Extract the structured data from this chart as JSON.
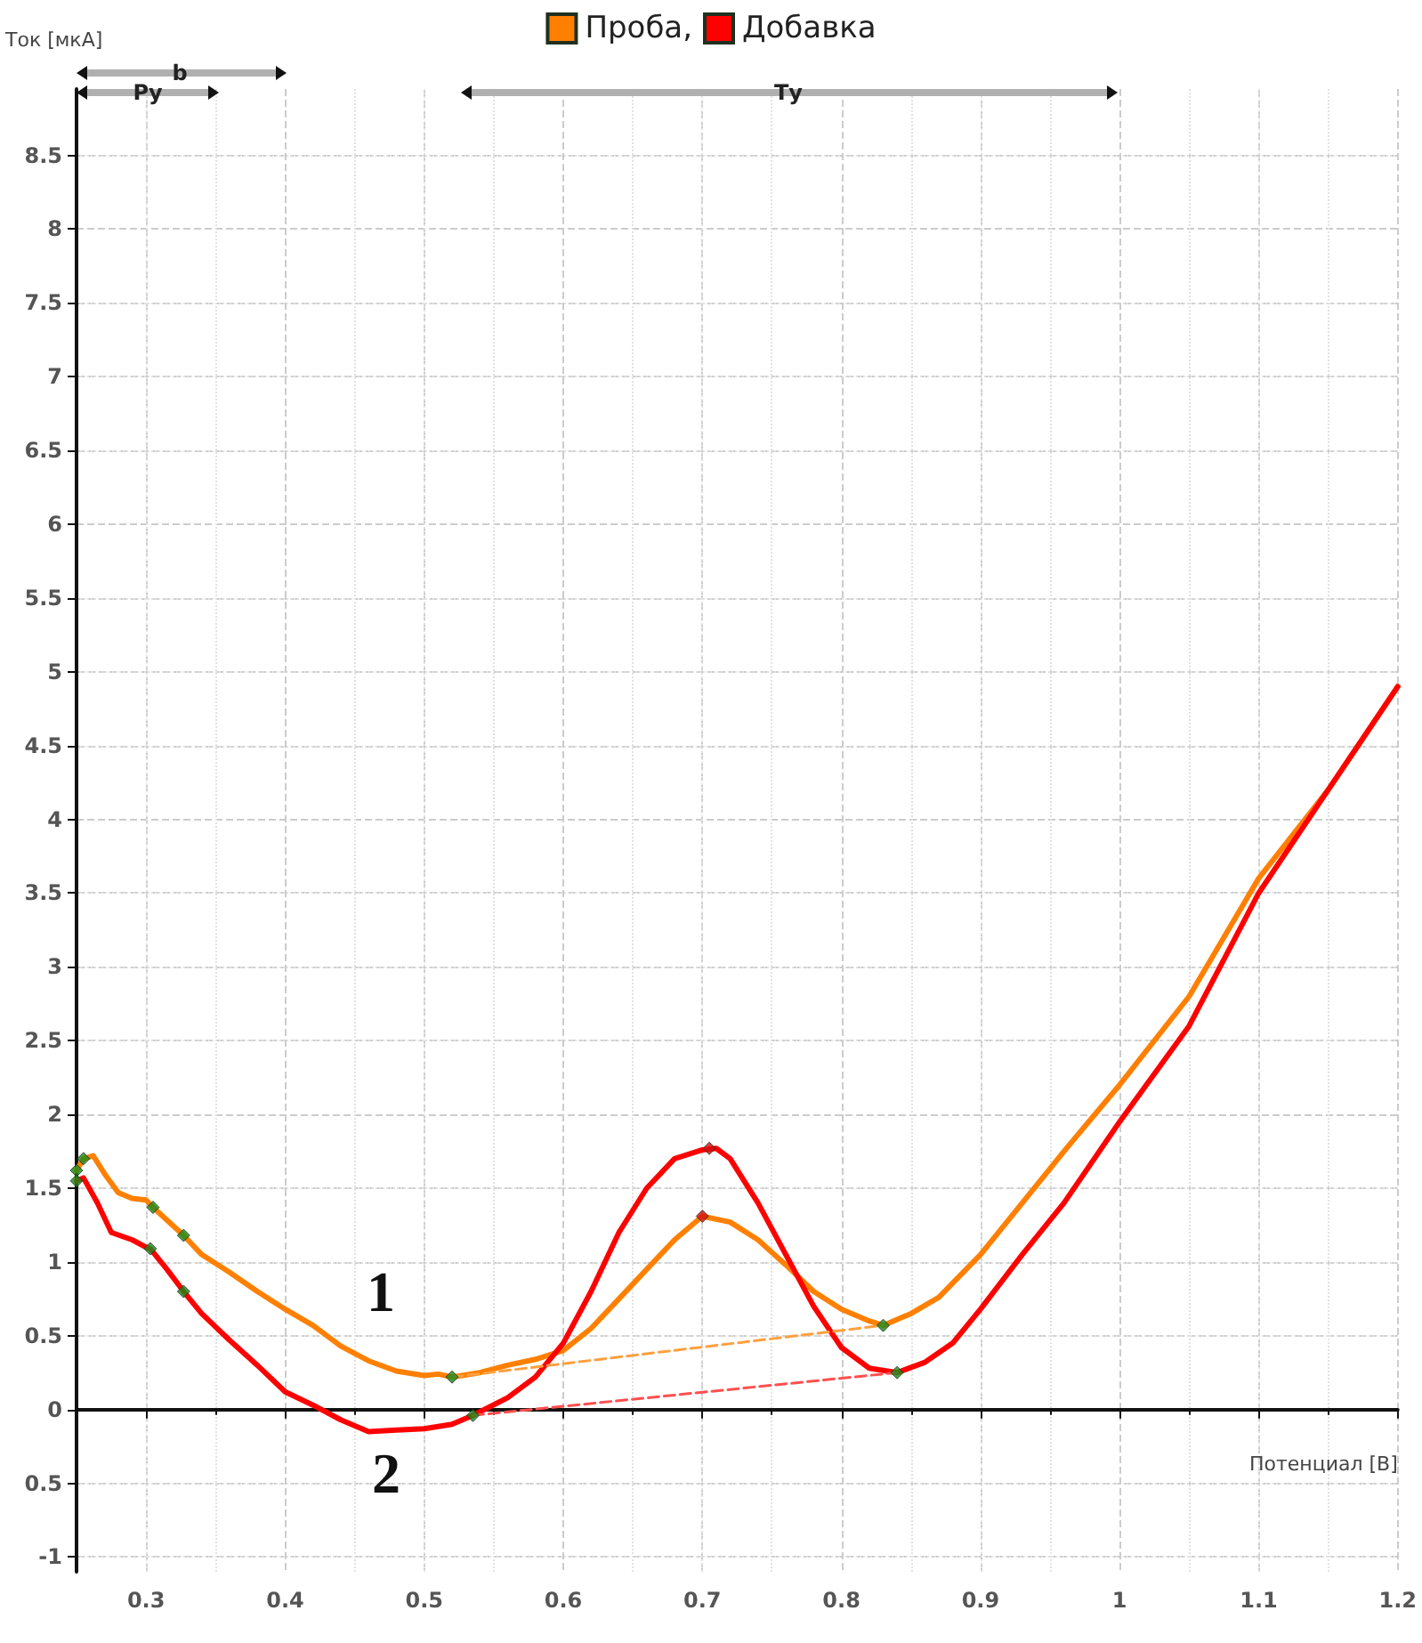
{
  "chart_data": {
    "type": "line",
    "xlabel": "Потенциал [В]",
    "ylabel": "Ток [мкА]",
    "xlim": [
      0.25,
      1.2
    ],
    "ylim": [
      -1.1,
      8.95
    ],
    "xticks": [
      0.3,
      0.4,
      0.5,
      0.6,
      0.7,
      0.8,
      0.9,
      1,
      1.1,
      1.2
    ],
    "yticks": [
      -1,
      {
        "value": -0.5,
        "label": "0.5"
      },
      0,
      0.5,
      1,
      1.5,
      2,
      2.5,
      3,
      3.5,
      4,
      4.5,
      5,
      5.5,
      6,
      6.5,
      7,
      7.5,
      8,
      8.5
    ],
    "grid": true,
    "legend": "top",
    "series": [
      {
        "name": "Проба,",
        "color": "#ff8000",
        "marker": "none",
        "line_style": "solid",
        "x": [
          0.25,
          0.255,
          0.262,
          0.27,
          0.28,
          0.29,
          0.3,
          0.305,
          0.327,
          0.34,
          0.36,
          0.38,
          0.4,
          0.42,
          0.44,
          0.46,
          0.48,
          0.5,
          0.51,
          0.52,
          0.54,
          0.56,
          0.58,
          0.6,
          0.62,
          0.64,
          0.66,
          0.68,
          0.7,
          0.72,
          0.74,
          0.76,
          0.78,
          0.8,
          0.82,
          0.83,
          0.85,
          0.87,
          0.9,
          0.93,
          0.96,
          1.0,
          1.05,
          1.1,
          1.15,
          1.2
        ],
        "values": [
          1.62,
          1.7,
          1.72,
          1.6,
          1.47,
          1.43,
          1.42,
          1.37,
          1.18,
          1.05,
          0.93,
          0.8,
          0.68,
          0.57,
          0.43,
          0.33,
          0.26,
          0.23,
          0.24,
          0.22,
          0.25,
          0.3,
          0.34,
          0.4,
          0.55,
          0.75,
          0.95,
          1.15,
          1.31,
          1.27,
          1.15,
          0.98,
          0.8,
          0.68,
          0.6,
          0.57,
          0.65,
          0.76,
          1.05,
          1.4,
          1.75,
          2.2,
          2.8,
          3.6,
          4.2,
          4.9
        ]
      },
      {
        "name": "Добавка",
        "color": "#ff0000",
        "marker": "none",
        "line_style": "solid",
        "x": [
          0.25,
          0.255,
          0.265,
          0.275,
          0.29,
          0.3,
          0.303,
          0.315,
          0.327,
          0.34,
          0.36,
          0.38,
          0.4,
          0.42,
          0.44,
          0.46,
          0.48,
          0.5,
          0.52,
          0.535,
          0.56,
          0.58,
          0.6,
          0.62,
          0.64,
          0.66,
          0.68,
          0.7,
          0.71,
          0.72,
          0.74,
          0.76,
          0.78,
          0.8,
          0.82,
          0.84,
          0.86,
          0.88,
          0.9,
          0.93,
          0.96,
          1.0,
          1.05,
          1.1,
          1.15,
          1.2
        ],
        "values": [
          1.55,
          1.57,
          1.4,
          1.2,
          1.15,
          1.1,
          1.09,
          0.95,
          0.8,
          0.65,
          0.47,
          0.3,
          0.12,
          0.03,
          -0.07,
          -0.15,
          -0.14,
          -0.13,
          -0.1,
          -0.04,
          0.08,
          0.22,
          0.45,
          0.8,
          1.2,
          1.5,
          1.7,
          1.76,
          1.77,
          1.7,
          1.4,
          1.05,
          0.7,
          0.42,
          0.28,
          0.25,
          0.32,
          0.45,
          0.68,
          1.05,
          1.4,
          1.95,
          2.6,
          3.5,
          4.2,
          4.9
        ]
      },
      {
        "color": "#ffa040",
        "marker": "none",
        "line_style": "dashed",
        "x": [
          0.52,
          0.83
        ],
        "values": [
          0.22,
          0.57
        ]
      },
      {
        "color": "#ff5050",
        "marker": "none",
        "line_style": "dashed",
        "x": [
          0.535,
          0.84
        ],
        "values": [
          -0.04,
          0.25
        ]
      },
      {
        "type": "scatter",
        "color": "#1a8a1a",
        "marker": "diamond",
        "x": [
          0.25,
          0.255,
          0.305,
          0.327,
          0.52,
          0.83,
          0.25,
          0.303,
          0.327,
          0.535,
          0.84
        ],
        "values": [
          1.62,
          1.7,
          1.37,
          1.18,
          0.22,
          0.57,
          1.55,
          1.09,
          0.8,
          -0.04,
          0.25
        ]
      },
      {
        "type": "scatter",
        "color": "#d01010",
        "marker": "diamond",
        "x": [
          0.7,
          0.705
        ],
        "values": [
          1.31,
          1.77
        ]
      }
    ],
    "annotations": [
      "1",
      "2",
      "Ру",
      "b",
      "Ту"
    ]
  }
}
